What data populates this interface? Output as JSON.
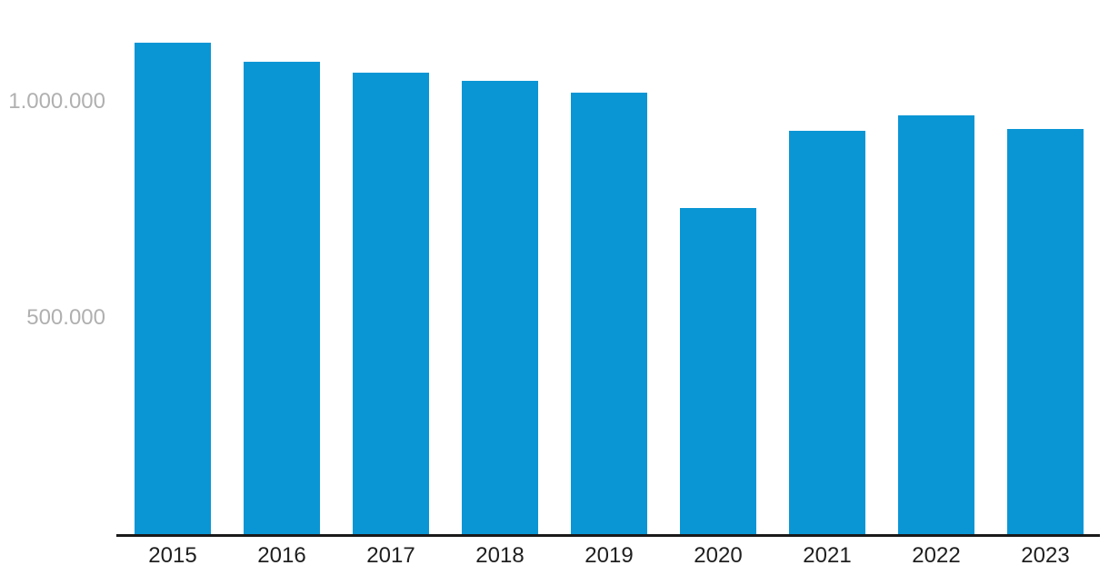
{
  "chart_data": {
    "type": "bar",
    "title": "",
    "xlabel": "",
    "ylabel": "",
    "categories": [
      "2015",
      "2016",
      "2017",
      "2018",
      "2019",
      "2020",
      "2021",
      "2022",
      "2023"
    ],
    "values": [
      1137000,
      1092000,
      1067000,
      1048000,
      1021000,
      754000,
      933000,
      968000,
      937000
    ],
    "ylim": [
      0,
      1235000
    ],
    "yticks": [
      {
        "value": 500000,
        "label": "500.000"
      },
      {
        "value": 1000000,
        "label": "1.000.000"
      }
    ],
    "grid": false,
    "legend": false,
    "colors": {
      "bar": "#0a96d5",
      "axis_line": "#1a1a1a",
      "xtick_label": "#1f1f1f",
      "ytick_label": "#b0b0b0",
      "background": "#ffffff"
    }
  }
}
